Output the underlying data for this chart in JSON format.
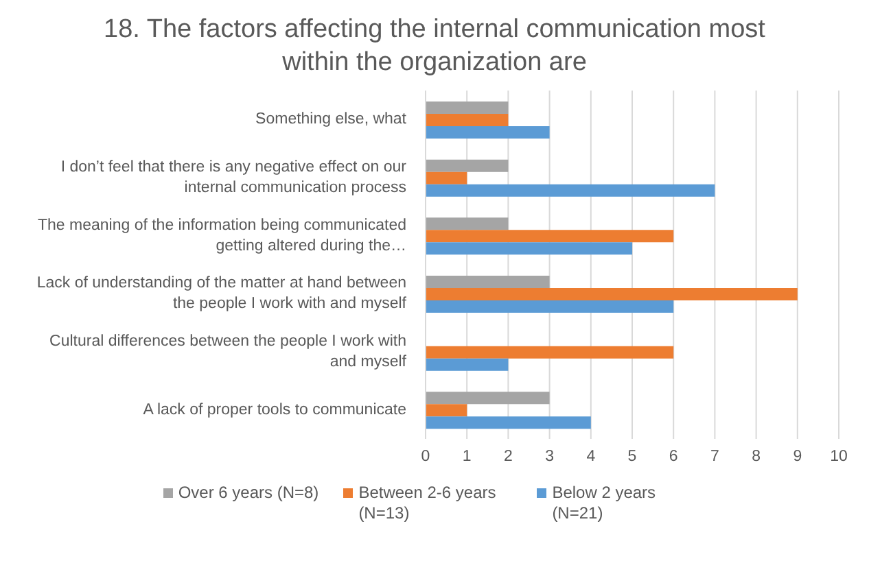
{
  "chart_data": {
    "type": "bar",
    "orientation": "horizontal",
    "title": "18. The factors affecting the internal communication most within the organization are",
    "categories": [
      "Something else, what",
      "I don’t feel that there is any negative effect on our internal communication process",
      "The meaning of the information being communicated getting altered during the…",
      "Lack of understanding of the matter at hand between the people I work with and myself",
      "Cultural differences between the people I work with and myself",
      "A lack of proper tools to communicate"
    ],
    "series": [
      {
        "name": "Over 6 years (N=8)",
        "color": "#a5a5a5",
        "values": [
          2,
          2,
          2,
          3,
          0,
          3
        ]
      },
      {
        "name": "Between 2-6 years (N=13)",
        "color": "#ed7d31",
        "values": [
          2,
          1,
          6,
          9,
          6,
          1
        ]
      },
      {
        "name": "Below 2 years (N=21)",
        "color": "#5b9bd5",
        "values": [
          3,
          7,
          5,
          6,
          2,
          4
        ]
      }
    ],
    "xlim": [
      0,
      10
    ],
    "xticks": [
      0,
      1,
      2,
      3,
      4,
      5,
      6,
      7,
      8,
      9,
      10
    ],
    "grid": "x",
    "legend": "bottom"
  }
}
